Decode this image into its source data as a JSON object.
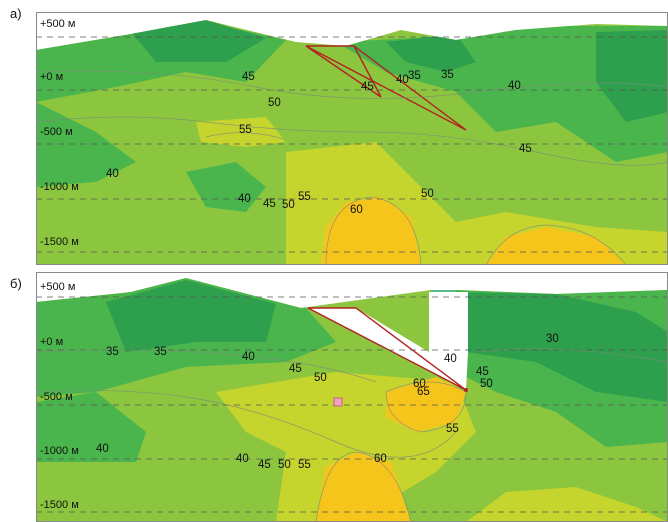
{
  "panels": [
    {
      "label": "а)",
      "elevations": [
        "+500 м",
        "+0 м",
        "-500 м",
        "-1000 м",
        "-1500 м"
      ],
      "contour_values": [
        "45",
        "40",
        "35",
        "35",
        "40",
        "50",
        "45",
        "55",
        "45",
        "40",
        "50",
        "40",
        "45",
        "50",
        "55",
        "60"
      ]
    },
    {
      "label": "б)",
      "elevations": [
        "+500 м",
        "+0 м",
        "-500 м",
        "-1000 м",
        "-1500 м"
      ],
      "contour_values": [
        "35",
        "35",
        "40",
        "45",
        "50",
        "30",
        "40",
        "45",
        "50",
        "60",
        "65",
        "55",
        "40",
        "40",
        "45",
        "50",
        "55",
        "60"
      ]
    }
  ],
  "colors": {
    "dark_green": "#2e9f4d",
    "mid_green": "#4bb54d",
    "light_green": "#8cc63f",
    "yellow_green": "#c6d42e",
    "yellow": "#f6c51c",
    "dark_yellow": "#e6b020",
    "cyan_green": "#58b98a",
    "fault_red": "#b22222"
  }
}
